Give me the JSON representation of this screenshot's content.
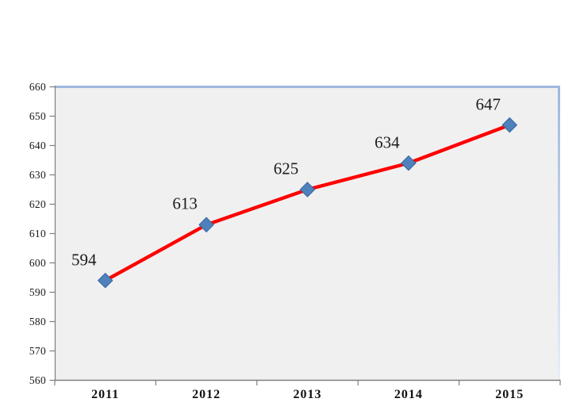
{
  "chart_data": {
    "type": "line",
    "title": "",
    "xlabel": "",
    "ylabel": "",
    "categories": [
      "2011",
      "2012",
      "2013",
      "2014",
      "2015"
    ],
    "series": [
      {
        "name": "value",
        "values": [
          594,
          613,
          625,
          634,
          647
        ],
        "data_labels": [
          "594",
          "613",
          "625",
          "634",
          "647"
        ]
      }
    ],
    "ylim": [
      560,
      660
    ],
    "yticks": [
      560,
      570,
      580,
      590,
      600,
      610,
      620,
      630,
      640,
      650,
      660
    ],
    "ytick_labels": [
      "560",
      "570",
      "580",
      "590",
      "600",
      "610",
      "620",
      "630",
      "640",
      "650",
      "660"
    ],
    "grid": false,
    "legend_position": "none",
    "marker_shape": "diamond",
    "colors": {
      "line": "#fe0000",
      "marker_fill": "#4f81bd",
      "marker_border": "#3e6ba5",
      "plot_background": "#f0f0f1",
      "chart_border_top": "#9fb7de",
      "chart_border_fade": "#e8eef7",
      "axis": "#7f7f7f",
      "text": "#1a1a1a",
      "background": "#ffffff"
    }
  }
}
